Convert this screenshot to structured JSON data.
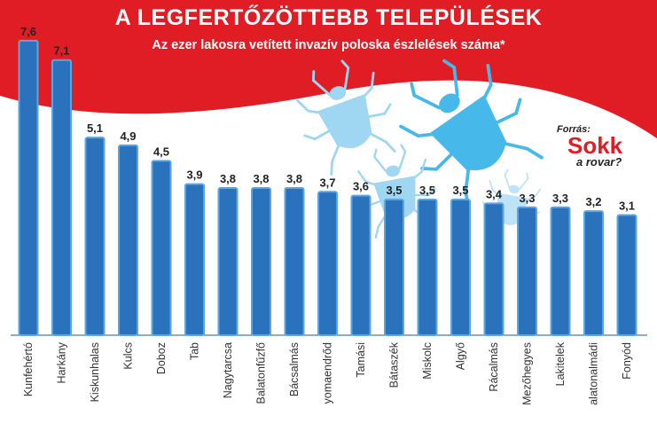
{
  "header": {
    "title": "A LEGFERTŐZÖTTEBB TELEPÜLÉSEK",
    "subtitle": "Az ezer lakosra vetített invazív poloska észlelések száma*"
  },
  "source": {
    "label": "Forrás:",
    "brand": "Sokk",
    "sub": "a rovar?"
  },
  "colors": {
    "header_red": "#e01d25",
    "bar_blue": "#2b72bd",
    "bar_edge": "#5ba5e4",
    "bug_blue": "#46b8ea",
    "bug_light": "#9fd6f2"
  },
  "icons": [
    "stink-bug-icon"
  ],
  "chart_data": {
    "type": "bar",
    "title": "A LEGFERTŐZÖTTEBB TELEPÜLÉSEK",
    "subtitle": "Az ezer lakosra vetített invazív poloska észlelések száma*",
    "xlabel": "",
    "ylabel": "",
    "grid": false,
    "categories": [
      "Kunfehértó",
      "Harkány",
      "Kiskunhalas",
      "Kulcs",
      "Doboz",
      "Tab",
      "Nagytarcsa",
      "Balatonfűzfő",
      "Bácsalmás",
      "yomaendrőd",
      "Tamási",
      "Bátaszék",
      "Miskolc",
      "Algyő",
      "Rácalmás",
      "Mezőhegyes",
      "Lakitelek",
      "alatonalmádi",
      "Fonyód"
    ],
    "values": [
      7.6,
      7.1,
      5.1,
      4.9,
      4.5,
      3.9,
      3.8,
      3.8,
      3.8,
      3.7,
      3.6,
      3.5,
      3.5,
      3.5,
      3.4,
      3.3,
      3.3,
      3.2,
      3.1
    ],
    "value_labels": [
      "7,6",
      "7,1",
      "5,1",
      "4,9",
      "4,5",
      "3,9",
      "3,8",
      "3,8",
      "3,8",
      "3,7",
      "3,6",
      "3,5",
      "3,5",
      "3,5",
      "3,4",
      "3,3",
      "3,3",
      "3,2",
      "3,1"
    ],
    "ylim": [
      0,
      8
    ]
  }
}
